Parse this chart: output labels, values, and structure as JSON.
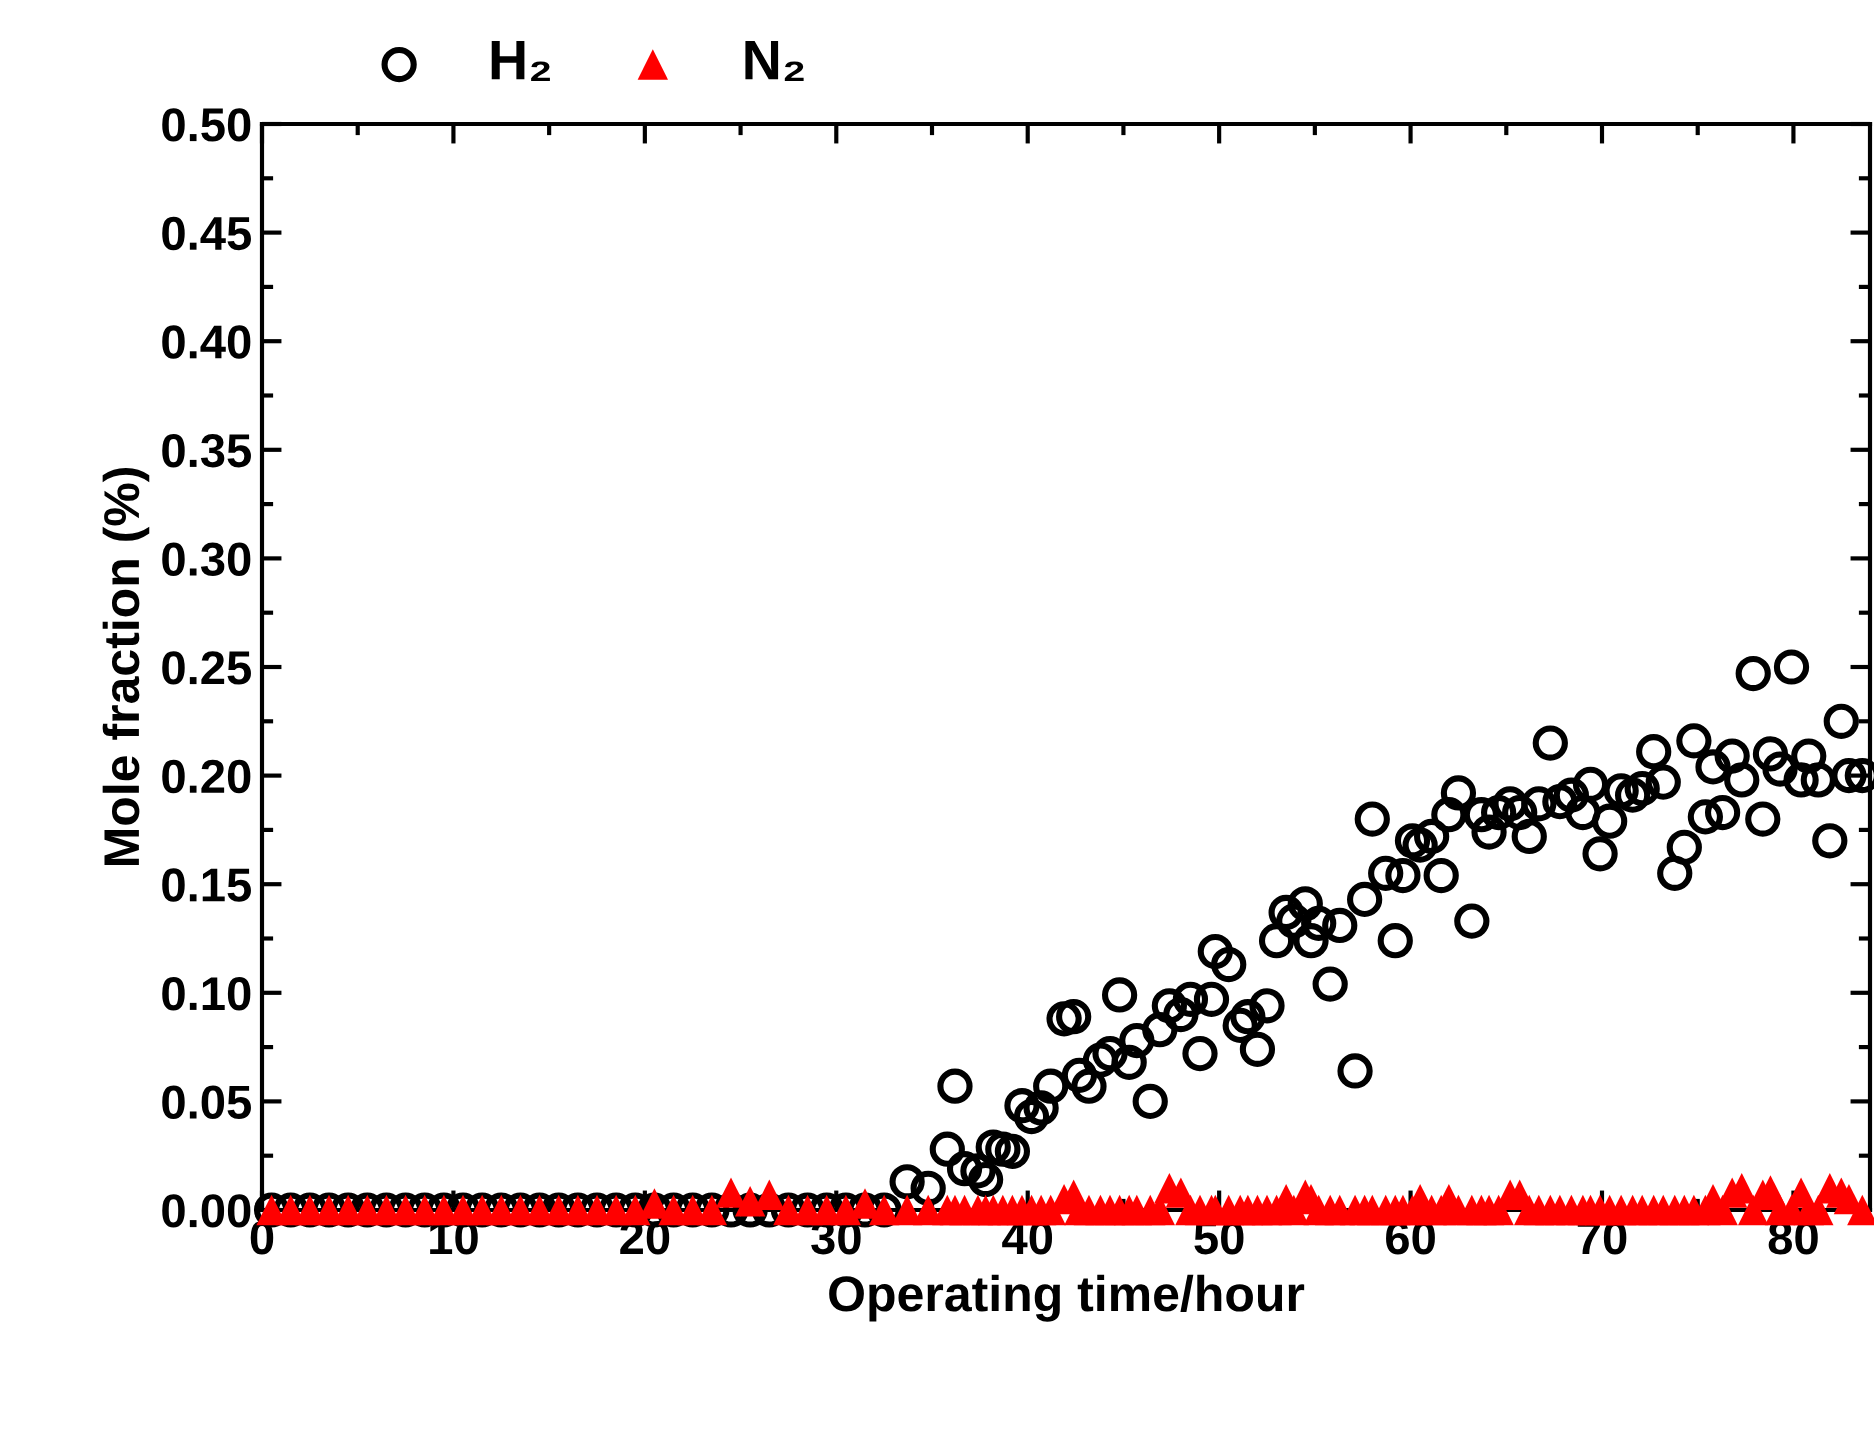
{
  "chart_data": {
    "type": "scatter",
    "xlabel": "Operating time/hour",
    "ylabel": "Mole fraction (%)",
    "x": [
      0.5,
      1.5,
      2.5,
      3.5,
      4.5,
      5.5,
      6.5,
      7.5,
      8.5,
      9.5,
      10.5,
      11.5,
      12.5,
      13.5,
      14.5,
      15.5,
      16.5,
      17.5,
      18.5,
      19.5,
      20.5,
      21.5,
      22.5,
      23.5,
      24.5,
      25.5,
      26.5,
      27.5,
      28.5,
      29.5,
      30.5,
      31.5,
      32.5,
      33.7,
      34.8,
      35.8,
      36.2,
      36.7,
      37.4,
      37.8,
      38.2,
      38.7,
      39.2,
      39.7,
      40.2,
      40.7,
      41.2,
      41.9,
      42.4,
      42.7,
      43.2,
      43.8,
      44.3,
      44.8,
      45.3,
      45.7,
      46.4,
      46.9,
      47.4,
      48.0,
      48.5,
      49.0,
      49.6,
      49.8,
      50.5,
      51.1,
      51.5,
      52.0,
      52.5,
      53.0,
      53.5,
      53.9,
      54.5,
      54.8,
      55.2,
      55.8,
      56.3,
      57.1,
      57.6,
      58.0,
      58.7,
      59.2,
      59.6,
      60.1,
      60.5,
      61.1,
      61.6,
      62.0,
      62.5,
      63.2,
      63.7,
      64.1,
      64.6,
      65.2,
      65.7,
      66.2,
      66.7,
      67.3,
      67.8,
      68.4,
      69.0,
      69.4,
      69.9,
      70.4,
      71.0,
      71.6,
      72.1,
      72.7,
      73.2,
      73.8,
      74.3,
      74.8,
      75.4,
      75.8,
      76.3,
      76.8,
      77.3,
      77.9,
      78.4,
      78.8,
      79.3,
      79.9,
      80.4,
      80.8,
      81.3,
      81.9,
      82.5,
      82.9,
      83.6
    ],
    "series": [
      {
        "name": "H₂",
        "color": "#000000",
        "marker": "circle",
        "values": [
          0,
          0,
          0,
          0,
          0,
          0,
          0,
          0,
          0,
          0,
          0,
          0,
          0,
          0,
          0,
          0,
          0,
          0,
          0,
          0,
          0,
          0,
          0,
          0,
          0,
          0,
          0,
          0,
          0,
          0,
          0,
          0,
          0,
          0.013,
          0.01,
          0.028,
          0.057,
          0.019,
          0.018,
          0.014,
          0.029,
          0.028,
          0.027,
          0.048,
          0.043,
          0.047,
          0.057,
          0.088,
          0.089,
          0.062,
          0.057,
          0.069,
          0.072,
          0.099,
          0.068,
          0.078,
          0.05,
          0.083,
          0.094,
          0.09,
          0.097,
          0.072,
          0.097,
          0.119,
          0.113,
          0.085,
          0.089,
          0.074,
          0.094,
          0.124,
          0.137,
          0.133,
          0.141,
          0.124,
          0.132,
          0.104,
          0.131,
          0.064,
          0.143,
          0.18,
          0.155,
          0.124,
          0.154,
          0.17,
          0.168,
          0.172,
          0.154,
          0.182,
          0.192,
          0.133,
          0.182,
          0.174,
          0.183,
          0.187,
          0.183,
          0.172,
          0.187,
          0.215,
          0.188,
          0.191,
          0.183,
          0.196,
          0.164,
          0.179,
          0.193,
          0.191,
          0.194,
          0.211,
          0.197,
          0.155,
          0.167,
          0.216,
          0.181,
          0.204,
          0.183,
          0.209,
          0.198,
          0.247,
          0.18,
          0.21,
          0.203,
          0.25,
          0.198,
          0.209,
          0.198,
          0.17,
          0.225,
          0.2,
          0.2
        ]
      },
      {
        "name": "N₂",
        "color": "#ff0000",
        "marker": "triangle",
        "values": [
          0,
          0,
          0,
          0,
          0,
          0,
          0,
          0,
          0,
          0,
          0,
          0,
          0,
          0,
          0,
          0,
          0,
          0,
          0,
          0,
          0.003,
          0,
          0,
          0,
          0.008,
          0.004,
          0.007,
          0,
          0,
          0,
          0,
          0.003,
          0,
          0,
          0,
          0,
          0,
          0,
          0,
          0,
          0,
          0,
          0,
          0,
          0,
          0,
          0,
          0.005,
          0.007,
          0,
          0,
          0,
          0,
          0,
          0,
          0,
          0,
          0,
          0.01,
          0.008,
          0,
          0,
          0,
          0,
          0,
          0,
          0,
          0,
          0,
          0,
          0.005,
          0,
          0.007,
          0.005,
          0,
          0,
          0,
          0,
          0,
          0,
          0,
          0,
          0,
          0,
          0.005,
          0,
          0,
          0.005,
          0,
          0,
          0,
          0,
          0,
          0.007,
          0.007,
          0,
          0,
          0,
          0,
          0,
          0,
          0,
          0,
          0,
          0,
          0,
          0,
          0,
          0,
          0,
          0,
          0,
          0,
          0.005,
          0,
          0.008,
          0.01,
          0,
          0.007,
          0.009,
          0,
          0,
          0.008,
          0,
          0,
          0.01,
          0.008,
          0.005,
          0
        ]
      }
    ],
    "xlim": [
      0,
      84
    ],
    "xticks": [
      0,
      10,
      20,
      30,
      40,
      50,
      60,
      70,
      80
    ],
    "ylim": [
      0,
      0.5
    ],
    "yticks": [
      {
        "value": 0,
        "label": "0.00"
      },
      {
        "value": 0.05,
        "label": "0.05"
      },
      {
        "value": 0.1,
        "label": "0.10"
      },
      {
        "value": 0.15,
        "label": "0.15"
      },
      {
        "value": 0.2,
        "label": "0.20"
      },
      {
        "value": 0.25,
        "label": "0.25"
      },
      {
        "value": 0.3,
        "label": "0.30"
      },
      {
        "value": 0.35,
        "label": "0.35"
      },
      {
        "value": 0.4,
        "label": "0.40"
      },
      {
        "value": 0.45,
        "label": "0.45"
      },
      {
        "value": 0.5,
        "label": "0.50"
      }
    ],
    "legend": "top left",
    "grid": false
  }
}
